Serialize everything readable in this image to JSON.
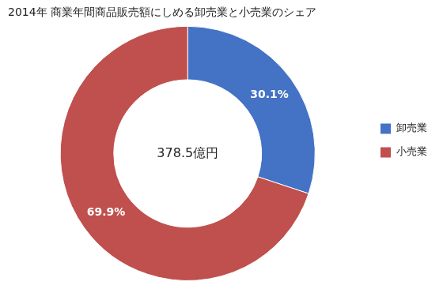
{
  "chart_data": {
    "type": "doughnut",
    "title": "2014年 商業年間商品販売額にしめる卸売業と小売業のシェア",
    "categories": [
      "卸売業",
      "小売業"
    ],
    "values": [
      30.1,
      69.9
    ],
    "colors": [
      "#4472C4",
      "#C0504D"
    ],
    "data_labels": true,
    "value_labels": [
      "30.1%",
      "69.9%"
    ],
    "annotations": [
      "378.5億円"
    ],
    "legend": "right"
  }
}
